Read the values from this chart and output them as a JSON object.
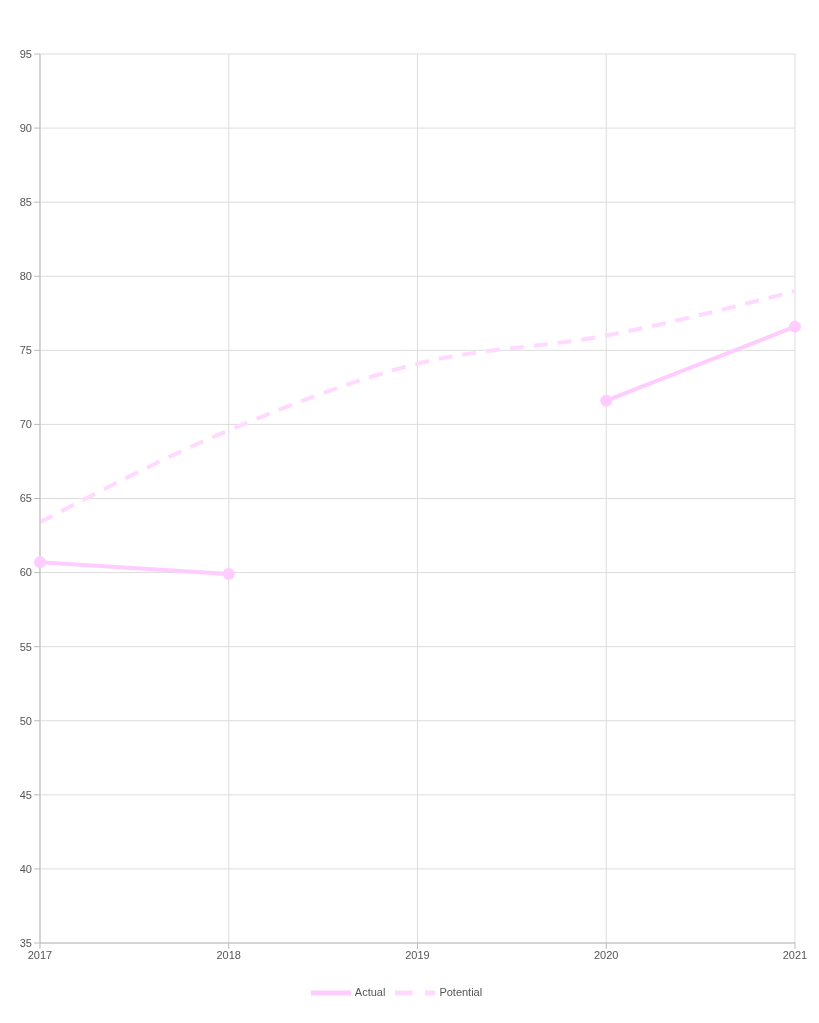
{
  "chart_data": {
    "type": "line",
    "categories": [
      "2017",
      "2018",
      "2019",
      "2020",
      "2021"
    ],
    "series": [
      {
        "name": "Actual",
        "color": "#ffccff",
        "values": [
          60.7,
          59.9,
          null,
          71.6,
          76.6
        ],
        "marker": "circle",
        "line_style": "solid"
      },
      {
        "name": "Potential",
        "color": "#ffd9ff",
        "values": [
          63.4,
          69.6,
          74.1,
          76.0,
          79.0
        ],
        "marker": "none",
        "line_style": "dashed"
      }
    ],
    "ylim": [
      35,
      95
    ],
    "yticks": [
      35,
      40,
      45,
      50,
      55,
      60,
      65,
      70,
      75,
      80,
      85,
      90,
      95
    ],
    "grid": true,
    "legend": "bottom"
  }
}
